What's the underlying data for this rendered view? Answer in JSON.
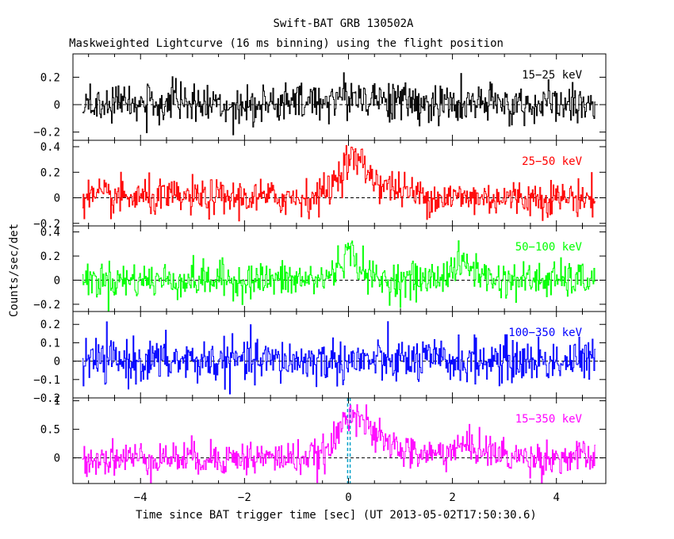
{
  "chart_data": {
    "type": "line",
    "title": "Swift-BAT GRB 130502A",
    "subtitle": "Maskweighted Lightcurve (16 ms binning) using the flight position",
    "xlabel": "Time since BAT trigger time [sec] (UT 2013-05-02T17:50:30.6)",
    "ylabel": "Counts/sec/det",
    "xlim": [
      -5.3,
      4.95
    ],
    "x_ticks": [
      -4,
      -2,
      0,
      2,
      4
    ],
    "x_tick_labels": [
      "−4",
      "−2",
      "0",
      "2",
      "4"
    ],
    "data_range": [
      -5.12,
      4.75
    ],
    "bin_size": 0.016,
    "trigger_markers": [
      -0.016,
      0.032
    ],
    "marker_color": "#00a0c8",
    "grid": false,
    "panels": [
      {
        "name": "15−25 keV",
        "color": "#000000",
        "ylim": [
          -0.26,
          0.37
        ],
        "yticks": [
          -0.2,
          0,
          0.2
        ],
        "ytick_labels": [
          "−0.2",
          "0",
          "0.2"
        ],
        "noise_sigma": 0.075,
        "peaks": [
          {
            "t": 0.15,
            "amp": 0.06,
            "width": 0.6
          }
        ],
        "values": []
      },
      {
        "name": "25−50 keV",
        "color": "#ff0000",
        "ylim": [
          -0.22,
          0.45
        ],
        "yticks": [
          -0.2,
          0,
          0.2,
          0.4
        ],
        "ytick_labels": [
          "−0.2",
          "0",
          "0.2",
          "0.4"
        ],
        "noise_sigma": 0.07,
        "peaks": [
          {
            "t": 0.05,
            "amp": 0.24,
            "width": 0.25
          },
          {
            "t": 0.5,
            "amp": 0.1,
            "width": 0.5
          }
        ],
        "values": []
      },
      {
        "name": "50−100 keV",
        "color": "#00ff00",
        "ylim": [
          -0.26,
          0.45
        ],
        "yticks": [
          -0.2,
          0,
          0.2,
          0.4
        ],
        "ytick_labels": [
          "−0.2",
          "0",
          "0.2",
          "0.4"
        ],
        "noise_sigma": 0.075,
        "peaks": [
          {
            "t": 0.0,
            "amp": 0.22,
            "width": 0.2
          },
          {
            "t": 2.2,
            "amp": 0.13,
            "width": 0.25
          }
        ],
        "values": []
      },
      {
        "name": "100−350 keV",
        "color": "#0000ff",
        "ylim": [
          -0.2,
          0.27
        ],
        "yticks": [
          -0.2,
          -0.1,
          0,
          0.1,
          0.2
        ],
        "ytick_labels": [
          "−0.2",
          "−0.1",
          "0",
          "0.1",
          "0.2"
        ],
        "noise_sigma": 0.06,
        "peaks": [],
        "values": []
      },
      {
        "name": "15−350 keV",
        "color": "#ff00ff",
        "ylim": [
          -0.45,
          1.05
        ],
        "yticks": [
          0,
          0.5,
          1
        ],
        "ytick_labels": [
          "0",
          "0.5",
          "1"
        ],
        "noise_sigma": 0.15,
        "peaks": [
          {
            "t": 0.05,
            "amp": 0.65,
            "width": 0.22
          },
          {
            "t": 0.5,
            "amp": 0.3,
            "width": 0.45
          },
          {
            "t": 2.3,
            "amp": 0.2,
            "width": 0.4
          }
        ],
        "values": []
      }
    ]
  }
}
